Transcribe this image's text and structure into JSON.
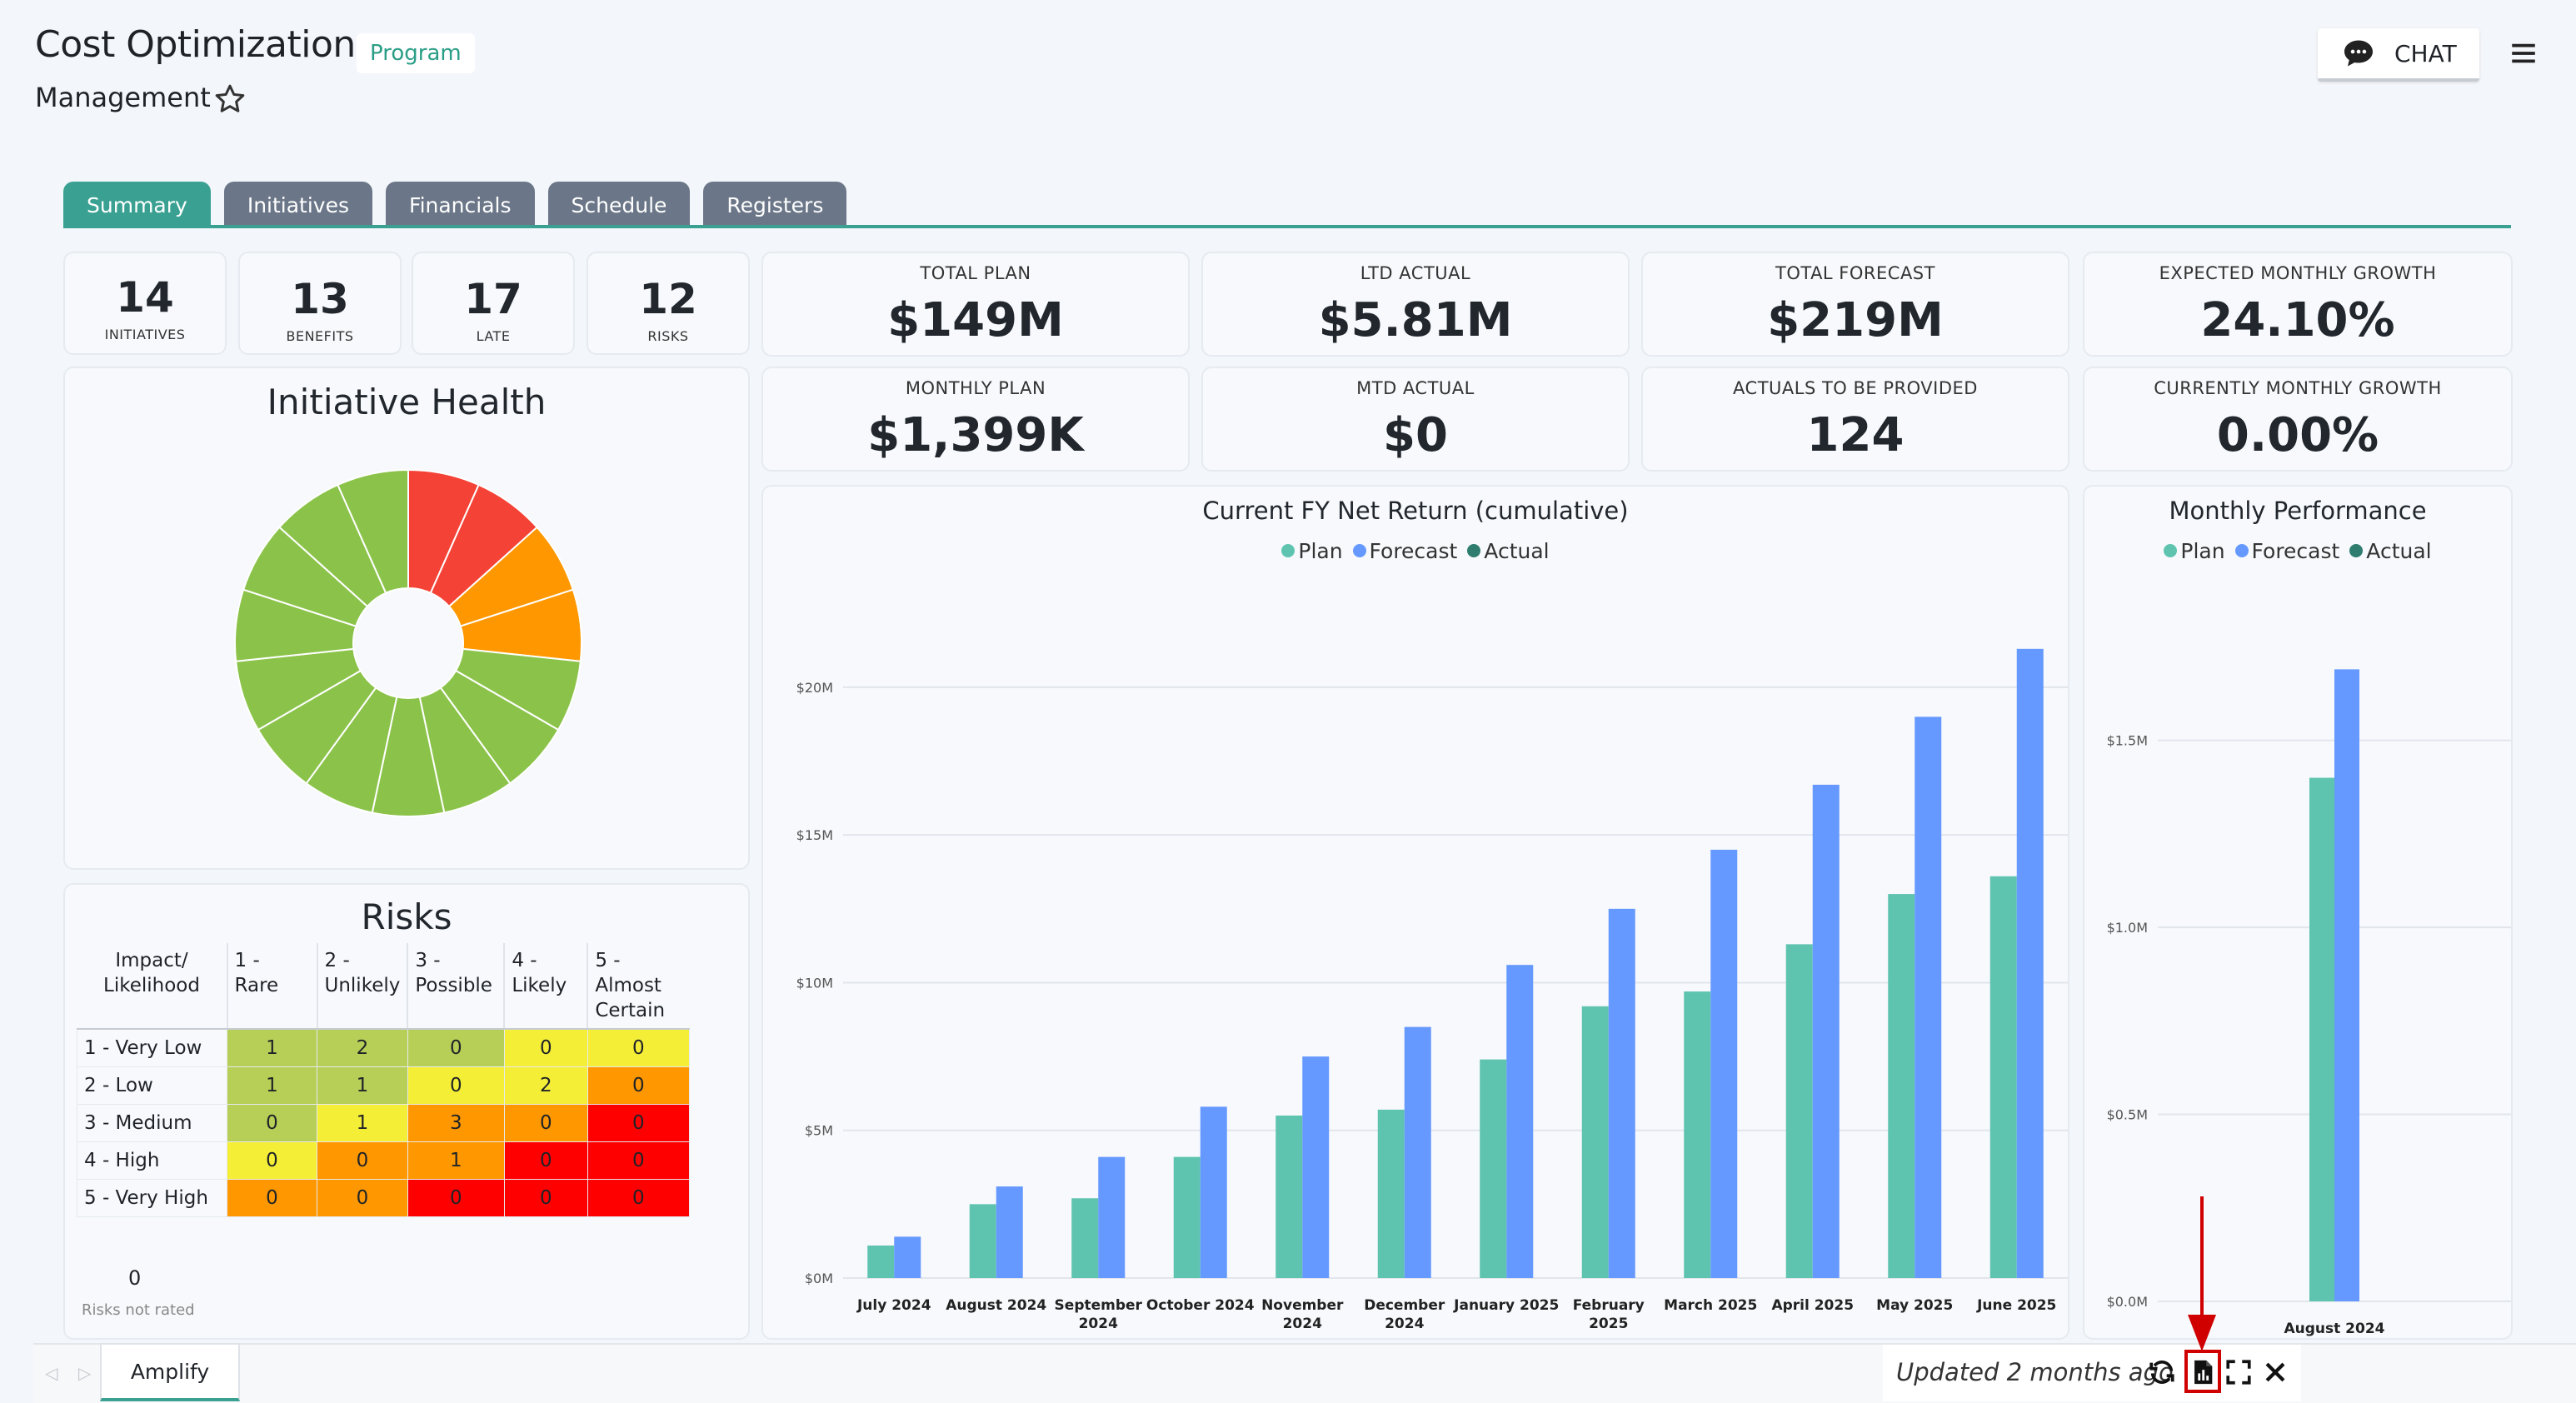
{
  "header": {
    "title": "Cost Optimization",
    "badge": "Program",
    "subtitle": "Management",
    "chat_label": "CHAT"
  },
  "tabs": [
    {
      "label": "Summary",
      "active": true
    },
    {
      "label": "Initiatives",
      "active": false
    },
    {
      "label": "Financials",
      "active": false
    },
    {
      "label": "Schedule",
      "active": false
    },
    {
      "label": "Registers",
      "active": false
    }
  ],
  "stats": [
    {
      "value": "14",
      "label": "INITIATIVES"
    },
    {
      "value": "13",
      "label": "BENEFITS"
    },
    {
      "value": "17",
      "label": "LATE"
    },
    {
      "value": "12",
      "label": "RISKS"
    }
  ],
  "kpis": [
    {
      "label": "TOTAL PLAN",
      "value": "$149M"
    },
    {
      "label": "LTD ACTUAL",
      "value": "$5.81M"
    },
    {
      "label": "TOTAL FORECAST",
      "value": "$219M"
    },
    {
      "label": "EXPECTED MONTHLY GROWTH",
      "value": "24.10%"
    },
    {
      "label": "MONTHLY PLAN",
      "value": "$1,399K"
    },
    {
      "label": "MTD ACTUAL",
      "value": "$0"
    },
    {
      "label": "ACTUALS TO BE PROVIDED",
      "value": "124"
    },
    {
      "label": "CURRENTLY MONTHLY GROWTH",
      "value": "0.00%"
    }
  ],
  "health": {
    "title": "Initiative Health",
    "colors": {
      "red": "#f44336",
      "orange": "#ff9800",
      "green": "#8bc34a"
    }
  },
  "risks": {
    "title": "Risks",
    "corner_header": "Impact/ Likelihood",
    "columns": [
      "1 - Rare",
      "2 - Unlikely",
      "3 - Possible",
      "4 - Likely",
      "5 - Almost Certain"
    ],
    "rows": [
      {
        "label": "1 - Very Low",
        "values": [
          "1",
          "2",
          "0",
          "0",
          "0"
        ],
        "colors": [
          "#b8cf57",
          "#b8cf57",
          "#b8cf57",
          "#f5ee37",
          "#f5ee37"
        ]
      },
      {
        "label": "2 - Low",
        "values": [
          "1",
          "1",
          "0",
          "2",
          "0"
        ],
        "colors": [
          "#b8cf57",
          "#b8cf57",
          "#f5ee37",
          "#f5ee37",
          "#ff9800"
        ]
      },
      {
        "label": "3 - Medium",
        "values": [
          "0",
          "1",
          "3",
          "0",
          "0"
        ],
        "colors": [
          "#b8cf57",
          "#f5ee37",
          "#ff9800",
          "#ff9800",
          "#ff0000"
        ]
      },
      {
        "label": "4 - High",
        "values": [
          "0",
          "0",
          "1",
          "0",
          "0"
        ],
        "colors": [
          "#f5ee37",
          "#ff9800",
          "#ff9800",
          "#ff0000",
          "#ff0000"
        ]
      },
      {
        "label": "5 - Very High",
        "values": [
          "0",
          "0",
          "0",
          "0",
          "0"
        ],
        "colors": [
          "#ff9800",
          "#ff9800",
          "#ff0000",
          "#ff0000",
          "#ff0000"
        ]
      }
    ],
    "not_rated_count": "0",
    "not_rated_label": "Risks not rated"
  },
  "chart_data": [
    {
      "type": "bar",
      "title": "Current FY Net Return (cumulative)",
      "categories": [
        "July 2024",
        "August 2024",
        "September 2024",
        "October 2024",
        "November 2024",
        "December 2024",
        "January 2025",
        "February 2025",
        "March 2025",
        "April 2025",
        "May 2025",
        "June 2025"
      ],
      "series": [
        {
          "name": "Plan",
          "color": "#5ec4b0",
          "values": [
            1.1,
            2.5,
            2.7,
            4.1,
            5.5,
            5.7,
            7.4,
            9.2,
            9.7,
            11.3,
            13.0,
            13.6
          ]
        },
        {
          "name": "Forecast",
          "color": "#6699ff",
          "values": [
            1.4,
            3.1,
            4.1,
            5.8,
            7.5,
            8.5,
            10.6,
            12.5,
            14.5,
            16.7,
            19.0,
            21.3
          ]
        },
        {
          "name": "Actual",
          "color": "#2e7d6e",
          "values": [
            0,
            0,
            0,
            0,
            0,
            0,
            0,
            0,
            0,
            0,
            0,
            0
          ]
        }
      ],
      "ylim": [
        0,
        22
      ],
      "yticks": [
        {
          "value": 0,
          "label": "$0M"
        },
        {
          "value": 5,
          "label": "$5M"
        },
        {
          "value": 10,
          "label": "$10M"
        },
        {
          "value": 15,
          "label": "$15M"
        },
        {
          "value": 20,
          "label": "$20M"
        }
      ],
      "grid": true,
      "legend": "top-center"
    },
    {
      "type": "bar",
      "title": "Monthly Performance",
      "categories": [
        "August 2024"
      ],
      "series": [
        {
          "name": "Plan",
          "color": "#5ec4b0",
          "values": [
            1.4
          ]
        },
        {
          "name": "Forecast",
          "color": "#6699ff",
          "values": [
            1.69
          ]
        },
        {
          "name": "Actual",
          "color": "#2e7d6e",
          "values": [
            0
          ]
        }
      ],
      "ylim": [
        0,
        1.8
      ],
      "yticks": [
        {
          "value": 0,
          "label": "$0.0M"
        },
        {
          "value": 0.5,
          "label": "$0.5M"
        },
        {
          "value": 1.0,
          "label": "$1.0M"
        },
        {
          "value": 1.5,
          "label": "$1.5M"
        }
      ],
      "grid": true,
      "legend": "top-center"
    }
  ],
  "footer": {
    "tab_label": "Amplify",
    "updated_text": "Updated 2 months ago"
  },
  "icons": [
    "star-icon",
    "chat-icon",
    "menu-icon",
    "refresh-icon",
    "export-report-icon",
    "fullscreen-icon",
    "close-icon"
  ]
}
